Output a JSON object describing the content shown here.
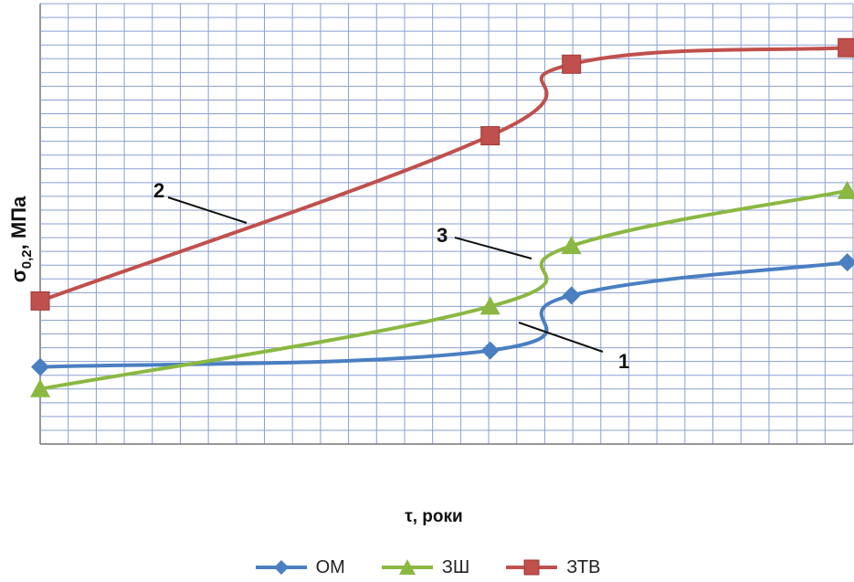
{
  "chart_data": {
    "type": "line",
    "title": "",
    "xlabel": "τ, роки",
    "ylabel_main": "σ",
    "ylabel_sub": "0,2",
    "ylabel_unit": ", МПа",
    "grid": true,
    "xlim": [
      0,
      28
    ],
    "ylim": [
      0,
      8
    ],
    "legend_position": "bottom",
    "series": [
      {
        "name": "ОМ",
        "marker": "diamond",
        "color": "#4a7fc1",
        "points": [
          [
            0,
            1.4
          ],
          [
            15.5,
            1.7
          ],
          [
            18.3,
            2.7
          ],
          [
            27.8,
            3.3
          ]
        ]
      },
      {
        "name": "ЗШ",
        "marker": "triangle",
        "color": "#8ab842",
        "points": [
          [
            0,
            1.0
          ],
          [
            15.5,
            2.5
          ],
          [
            18.3,
            3.6
          ],
          [
            27.8,
            4.6
          ]
        ]
      },
      {
        "name": "ЗТВ",
        "marker": "square",
        "color": "#c0504d",
        "points": [
          [
            0,
            2.6
          ],
          [
            15.5,
            5.6
          ],
          [
            18.3,
            6.9
          ],
          [
            27.8,
            7.2
          ]
        ]
      }
    ],
    "annotations": [
      {
        "label": "1",
        "series": "ОМ"
      },
      {
        "label": "2",
        "series": "ЗТВ"
      },
      {
        "label": "3",
        "series": "ЗШ"
      }
    ]
  }
}
